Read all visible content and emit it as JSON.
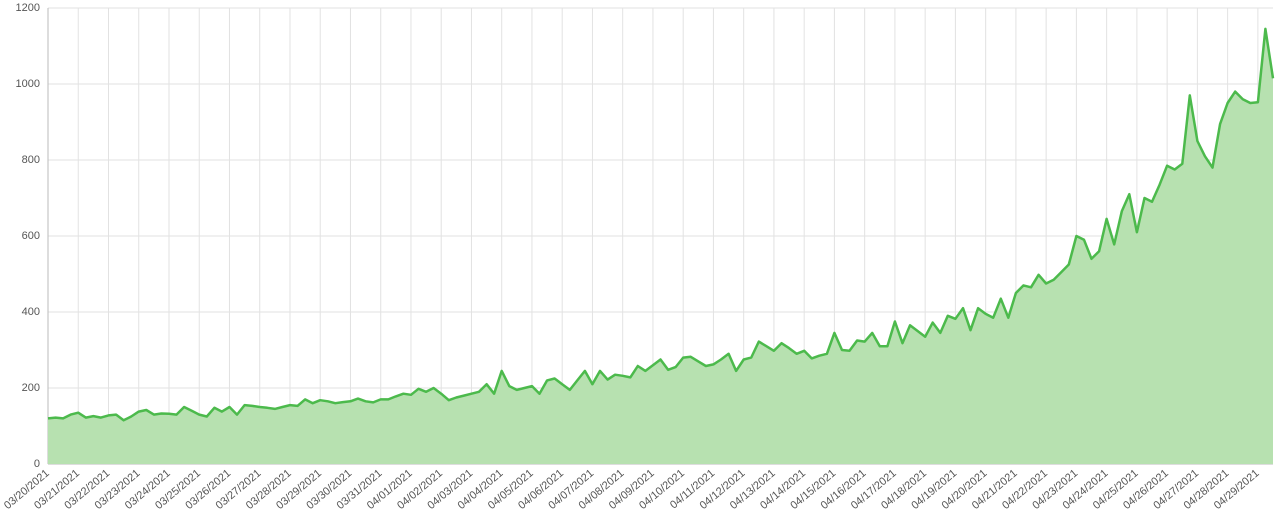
{
  "chart_data": {
    "type": "area",
    "categories": [
      "03/20/2021",
      null,
      null,
      null,
      "03/21/2021",
      null,
      null,
      null,
      "03/22/2021",
      null,
      null,
      null,
      "03/23/2021",
      null,
      null,
      null,
      "03/24/2021",
      null,
      null,
      null,
      "03/25/2021",
      null,
      null,
      null,
      "03/26/2021",
      null,
      null,
      null,
      "03/27/2021",
      null,
      null,
      null,
      "03/28/2021",
      null,
      null,
      null,
      "03/29/2021",
      null,
      null,
      null,
      "03/30/2021",
      null,
      null,
      null,
      "03/31/2021",
      null,
      null,
      null,
      "04/01/2021",
      null,
      null,
      null,
      "04/02/2021",
      null,
      null,
      null,
      "04/03/2021",
      null,
      null,
      null,
      "04/04/2021",
      null,
      null,
      null,
      "04/05/2021",
      null,
      null,
      null,
      "04/06/2021",
      null,
      null,
      null,
      "04/07/2021",
      null,
      null,
      null,
      "04/08/2021",
      null,
      null,
      null,
      "04/09/2021",
      null,
      null,
      null,
      "04/10/2021",
      null,
      null,
      null,
      "04/11/2021",
      null,
      null,
      null,
      "04/12/2021",
      null,
      null,
      null,
      "04/13/2021",
      null,
      null,
      null,
      "04/14/2021",
      null,
      null,
      null,
      "04/15/2021",
      null,
      null,
      null,
      "04/16/2021",
      null,
      null,
      null,
      "04/17/2021",
      null,
      null,
      null,
      "04/18/2021",
      null,
      null,
      null,
      "04/19/2021",
      null,
      null,
      null,
      "04/20/2021",
      null,
      null,
      null,
      "04/21/2021",
      null,
      null,
      null,
      "04/22/2021",
      null,
      null,
      null,
      "04/23/2021",
      null,
      null,
      null,
      "04/24/2021",
      null,
      null,
      null,
      "04/25/2021",
      null,
      null,
      null,
      "04/26/2021",
      null,
      null,
      null,
      "04/27/2021",
      null,
      null,
      null,
      "04/28/2021",
      null,
      null,
      null,
      "04/29/2021",
      null,
      null
    ],
    "values": [
      120,
      122,
      120,
      130,
      135,
      122,
      126,
      122,
      128,
      130,
      115,
      125,
      138,
      142,
      130,
      133,
      132,
      130,
      150,
      140,
      130,
      125,
      148,
      138,
      150,
      130,
      155,
      153,
      150,
      148,
      145,
      150,
      155,
      153,
      170,
      160,
      168,
      165,
      160,
      163,
      165,
      172,
      165,
      162,
      170,
      170,
      178,
      185,
      182,
      198,
      190,
      200,
      185,
      168,
      175,
      180,
      185,
      190,
      210,
      185,
      245,
      205,
      195,
      200,
      205,
      185,
      220,
      225,
      210,
      195,
      220,
      245,
      210,
      245,
      222,
      235,
      232,
      228,
      258,
      245,
      260,
      275,
      248,
      255,
      280,
      282,
      270,
      258,
      262,
      275,
      290,
      245,
      275,
      280,
      322,
      310,
      298,
      318,
      305,
      290,
      298,
      278,
      285,
      290,
      345,
      300,
      298,
      325,
      322,
      345,
      310,
      310,
      375,
      318,
      365,
      350,
      335,
      372,
      345,
      390,
      382,
      410,
      352,
      410,
      395,
      385,
      435,
      385,
      450,
      470,
      465,
      498,
      475,
      485,
      505,
      525,
      600,
      590,
      540,
      560,
      645,
      578,
      665,
      710,
      610,
      700,
      690,
      735,
      785,
      775,
      790,
      970,
      850,
      810,
      780,
      895,
      950,
      980,
      960,
      950,
      952,
      1145,
      1015
    ],
    "color": "#4cba4c",
    "fill": "#b7e1b0",
    "ylim": [
      0,
      1200
    ],
    "yticks": [
      0,
      200,
      400,
      600,
      800,
      1000,
      1200
    ],
    "grid": true
  }
}
